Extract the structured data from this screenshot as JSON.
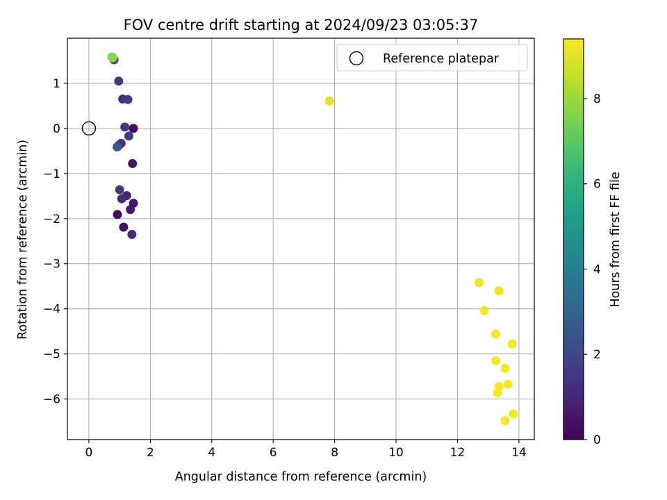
{
  "chart_data": {
    "type": "scatter",
    "title": "FOV centre drift starting at 2024/09/23 03:05:37",
    "xlabel": "Angular distance from reference (arcmin)",
    "ylabel": "Rotation from reference (arcmin)",
    "xlim": [
      -0.7,
      14.5
    ],
    "ylim": [
      -6.9,
      2.0
    ],
    "xticks": [
      0,
      2,
      4,
      6,
      8,
      10,
      12,
      14
    ],
    "xtick_labels": [
      "0",
      "2",
      "4",
      "6",
      "8",
      "10",
      "12",
      "14"
    ],
    "yticks": [
      1,
      0,
      -1,
      -2,
      -3,
      -4,
      -5,
      -6
    ],
    "ytick_labels": [
      "1",
      "0",
      "−1",
      "−2",
      "−3",
      "−4",
      "−5",
      "−6"
    ],
    "grid": true,
    "legend": {
      "position": "top-right",
      "entries": [
        "Reference platepar"
      ]
    },
    "reference_point": {
      "x": 0,
      "y": 0,
      "label": "Reference platepar"
    },
    "colorbar": {
      "label": "Hours from first FF file",
      "range": [
        0,
        9.4
      ],
      "ticks": [
        0,
        2,
        4,
        6,
        8
      ],
      "tick_labels": [
        "0",
        "2",
        "4",
        "6",
        "8"
      ],
      "colormap": "viridis",
      "colormap_stops": [
        "#440154",
        "#482878",
        "#3e4989",
        "#31688e",
        "#26828e",
        "#1f9e89",
        "#35b779",
        "#6ece58",
        "#b5de2b",
        "#fde725"
      ]
    },
    "points": [
      {
        "x": 0.82,
        "y": 1.52,
        "hours": 2.3
      },
      {
        "x": 0.75,
        "y": 1.58,
        "hours": 7.6
      },
      {
        "x": 0.78,
        "y": 1.57,
        "hours": 7.8
      },
      {
        "x": 0.97,
        "y": 1.05,
        "hours": 1.5
      },
      {
        "x": 1.1,
        "y": 0.65,
        "hours": 1.3
      },
      {
        "x": 1.27,
        "y": 0.64,
        "hours": 1.6
      },
      {
        "x": 1.17,
        "y": 0.03,
        "hours": 1.4
      },
      {
        "x": 1.45,
        "y": 0.0,
        "hours": 0.3
      },
      {
        "x": 1.3,
        "y": -0.17,
        "hours": 1.6
      },
      {
        "x": 1.05,
        "y": -0.33,
        "hours": 1.5
      },
      {
        "x": 0.98,
        "y": -0.37,
        "hours": 1.2
      },
      {
        "x": 0.92,
        "y": -0.41,
        "hours": 2.5
      },
      {
        "x": 1.42,
        "y": -0.78,
        "hours": 0.5
      },
      {
        "x": 1.0,
        "y": -1.36,
        "hours": 1.6
      },
      {
        "x": 1.23,
        "y": -1.49,
        "hours": 0.9
      },
      {
        "x": 1.07,
        "y": -1.56,
        "hours": 1.1
      },
      {
        "x": 1.45,
        "y": -1.66,
        "hours": 0.6
      },
      {
        "x": 1.35,
        "y": -1.8,
        "hours": 0.7
      },
      {
        "x": 0.93,
        "y": -1.91,
        "hours": 0.3
      },
      {
        "x": 1.13,
        "y": -2.19,
        "hours": 0.4
      },
      {
        "x": 1.4,
        "y": -2.35,
        "hours": 1.2
      },
      {
        "x": 7.83,
        "y": 0.61,
        "hours": 9.0
      },
      {
        "x": 12.7,
        "y": -3.42,
        "hours": 9.2
      },
      {
        "x": 13.35,
        "y": -3.6,
        "hours": 9.2
      },
      {
        "x": 12.87,
        "y": -4.04,
        "hours": 9.3
      },
      {
        "x": 13.25,
        "y": -4.56,
        "hours": 9.3
      },
      {
        "x": 13.78,
        "y": -4.78,
        "hours": 9.3
      },
      {
        "x": 13.25,
        "y": -5.15,
        "hours": 9.3
      },
      {
        "x": 13.55,
        "y": -5.32,
        "hours": 9.3
      },
      {
        "x": 13.65,
        "y": -5.67,
        "hours": 9.3
      },
      {
        "x": 13.35,
        "y": -5.72,
        "hours": 9.3
      },
      {
        "x": 13.3,
        "y": -5.86,
        "hours": 9.3
      },
      {
        "x": 13.82,
        "y": -6.33,
        "hours": 9.3
      },
      {
        "x": 13.55,
        "y": -6.48,
        "hours": 9.3
      }
    ]
  }
}
